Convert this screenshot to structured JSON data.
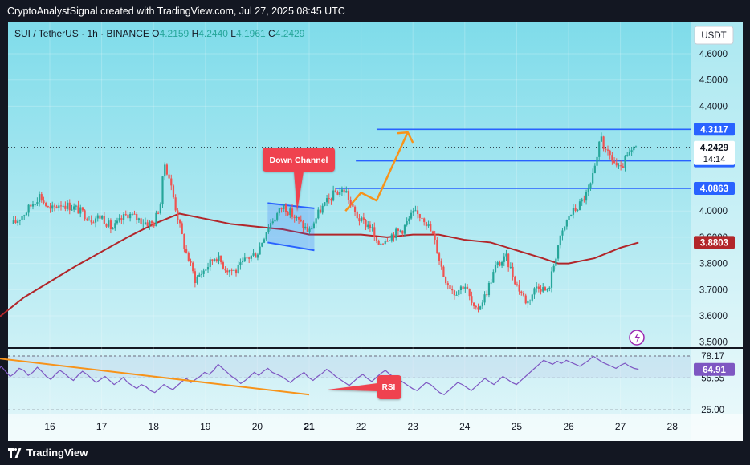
{
  "header": {
    "title": "CryptoAnalystSignal created with TradingView.com, Jul 27, 2025 08:45 UTC"
  },
  "symbol_info": {
    "symbol": "SUI / TetherUS · 1h · BINANCE",
    "open_label": "O",
    "open": "4.2159",
    "high_label": "H",
    "high": "4.2440",
    "low_label": "L",
    "low": "4.1961",
    "close_label": "C",
    "close": "4.2429"
  },
  "currency_button": "USDT",
  "footer": {
    "brand": "TradingView"
  },
  "colors": {
    "bg_top": "#7fdcea",
    "bg_bottom": "#e2f6f9",
    "up": "#26a69a",
    "down": "#ef5350",
    "level": "#2962ff",
    "ma": "#b2262a",
    "arrow": "#f7931a",
    "rsi": "#7e57c2"
  },
  "icons": [
    "lightning-icon",
    "tradingview-logo-icon"
  ],
  "chart_data": [
    {
      "type": "candlestick",
      "title": "SUI / TetherUS · 1h · BINANCE",
      "x_ticks": [
        "16",
        "17",
        "18",
        "19",
        "20",
        "21",
        "22",
        "23",
        "24",
        "25",
        "26",
        "27",
        "28"
      ],
      "y_ticks": [
        "4.6000",
        "4.5000",
        "4.4000",
        "4.0000",
        "3.9000",
        "3.8000",
        "3.7000",
        "3.6000",
        "3.5000"
      ],
      "ylim": [
        3.5,
        4.68
      ],
      "price_path": [
        [
          15.3,
          3.95
        ],
        [
          15.55,
          4.0
        ],
        [
          15.8,
          4.06
        ],
        [
          16.0,
          4.0
        ],
        [
          16.2,
          4.03
        ],
        [
          16.5,
          4.01
        ],
        [
          16.8,
          3.97
        ],
        [
          17.0,
          3.98
        ],
        [
          17.2,
          3.93
        ],
        [
          17.5,
          3.99
        ],
        [
          17.8,
          3.96
        ],
        [
          18.0,
          3.95
        ],
        [
          18.15,
          4.04
        ],
        [
          18.2,
          4.19
        ],
        [
          18.3,
          4.13
        ],
        [
          18.45,
          3.99
        ],
        [
          18.6,
          3.86
        ],
        [
          18.8,
          3.74
        ],
        [
          19.0,
          3.78
        ],
        [
          19.2,
          3.83
        ],
        [
          19.4,
          3.78
        ],
        [
          19.6,
          3.77
        ],
        [
          19.8,
          3.82
        ],
        [
          20.0,
          3.84
        ],
        [
          20.2,
          3.94
        ],
        [
          20.5,
          4.02
        ],
        [
          20.8,
          3.96
        ],
        [
          21.0,
          3.92
        ],
        [
          21.2,
          4.0
        ],
        [
          21.5,
          4.07
        ],
        [
          21.7,
          4.08
        ],
        [
          21.85,
          4.0
        ],
        [
          22.0,
          3.96
        ],
        [
          22.2,
          3.94
        ],
        [
          22.3,
          3.87
        ],
        [
          22.5,
          3.9
        ],
        [
          22.8,
          3.93
        ],
        [
          23.0,
          3.99
        ],
        [
          23.2,
          3.98
        ],
        [
          23.4,
          3.9
        ],
        [
          23.6,
          3.75
        ],
        [
          23.8,
          3.69
        ],
        [
          24.0,
          3.72
        ],
        [
          24.2,
          3.61
        ],
        [
          24.4,
          3.68
        ],
        [
          24.6,
          3.79
        ],
        [
          24.8,
          3.82
        ],
        [
          25.0,
          3.72
        ],
        [
          25.2,
          3.65
        ],
        [
          25.4,
          3.72
        ],
        [
          25.6,
          3.69
        ],
        [
          25.8,
          3.87
        ],
        [
          26.0,
          3.98
        ],
        [
          26.2,
          4.02
        ],
        [
          26.4,
          4.08
        ],
        [
          26.55,
          4.19
        ],
        [
          26.62,
          4.31
        ],
        [
          26.7,
          4.22
        ],
        [
          26.8,
          4.21
        ],
        [
          27.0,
          4.15
        ],
        [
          27.1,
          4.2
        ],
        [
          27.3,
          4.24
        ]
      ],
      "moving_average": [
        [
          14.8,
          3.56
        ],
        [
          15.5,
          3.67
        ],
        [
          16.5,
          3.79
        ],
        [
          17.5,
          3.9
        ],
        [
          18.0,
          3.95
        ],
        [
          18.5,
          3.99
        ],
        [
          19.0,
          3.97
        ],
        [
          19.5,
          3.95
        ],
        [
          20.0,
          3.94
        ],
        [
          20.5,
          3.93
        ],
        [
          21.0,
          3.91
        ],
        [
          21.5,
          3.91
        ],
        [
          22.0,
          3.91
        ],
        [
          22.5,
          3.9
        ],
        [
          23.0,
          3.91
        ],
        [
          23.5,
          3.91
        ],
        [
          24.0,
          3.89
        ],
        [
          24.5,
          3.88
        ],
        [
          25.0,
          3.85
        ],
        [
          25.5,
          3.82
        ],
        [
          25.8,
          3.8
        ],
        [
          26.0,
          3.8
        ],
        [
          26.5,
          3.82
        ],
        [
          27.0,
          3.86
        ],
        [
          27.35,
          3.88
        ]
      ],
      "levels": [
        {
          "value": 4.3117,
          "label": "4.3117",
          "from_x": 22.3
        },
        {
          "value": 4.1915,
          "label": "4.1915",
          "from_x": 21.9
        },
        {
          "value": 4.0863,
          "label": "4.0863",
          "from_x": 21.5
        }
      ],
      "price_labels": [
        {
          "value": 4.2429,
          "label": "4.2429",
          "sub": "14:14",
          "style": "current"
        },
        {
          "value": 3.8803,
          "label": "3.8803",
          "style": "ma"
        }
      ],
      "down_channel": {
        "label": "Down Channel",
        "upper": [
          [
            20.2,
            4.03
          ],
          [
            21.1,
            4.01
          ]
        ],
        "lower": [
          [
            20.2,
            3.88
          ],
          [
            21.1,
            3.85
          ]
        ]
      },
      "projection_arrow": [
        [
          21.7,
          4.0
        ],
        [
          22.0,
          4.07
        ],
        [
          22.3,
          4.04
        ],
        [
          22.9,
          4.3
        ],
        [
          23.15,
          4.29
        ]
      ]
    },
    {
      "type": "line",
      "title": "RSI",
      "y_ticks": [
        "78.17",
        "56.55",
        "25.00"
      ],
      "ylim": [
        20,
        85
      ],
      "current": "64.91",
      "values": [
        65,
        60,
        62,
        68,
        63,
        58,
        61,
        66,
        64,
        59,
        62,
        67,
        63,
        58,
        55,
        60,
        64,
        61,
        57,
        54,
        59,
        63,
        60,
        56,
        52,
        55,
        58,
        54,
        50,
        53,
        57,
        52,
        49,
        46,
        50,
        48,
        44,
        42,
        46,
        50,
        47,
        45,
        49,
        53,
        56,
        52,
        55,
        58,
        62,
        60,
        64,
        70,
        66,
        62,
        58,
        55,
        51,
        54,
        58,
        62,
        59,
        63,
        66,
        62,
        60,
        58,
        55,
        52,
        56,
        59,
        62,
        57,
        54,
        58,
        61,
        65,
        62,
        58,
        55,
        52,
        49,
        53,
        57,
        60,
        56,
        53,
        57,
        61,
        64,
        60,
        57,
        55,
        52,
        49,
        46,
        44,
        48,
        52,
        50,
        46,
        42,
        40,
        44,
        48,
        52,
        50,
        47,
        44,
        48,
        52,
        56,
        53,
        50,
        54,
        58,
        55,
        52,
        50,
        54,
        58,
        62,
        66,
        70,
        74,
        72,
        70,
        73,
        71,
        74,
        72,
        70,
        68,
        71,
        74,
        78,
        75,
        72,
        70,
        68,
        66,
        69,
        71,
        68,
        66,
        65
      ],
      "trendline": [
        [
          14.8,
          77
        ],
        [
          21.0,
          40
        ]
      ]
    }
  ]
}
